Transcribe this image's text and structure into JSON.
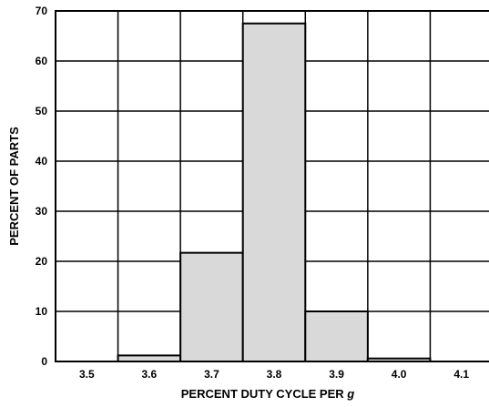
{
  "chart_data": {
    "type": "bar",
    "title": "",
    "xlabel_prefix": "PERCENT DUTY CYCLE PER ",
    "xlabel_symbol": "g",
    "ylabel": "PERCENT OF PARTS",
    "categories": [
      "3.5",
      "3.6",
      "3.7",
      "3.8",
      "3.9",
      "4.0",
      "4.1"
    ],
    "values": [
      0,
      1.2,
      21.7,
      67.5,
      10,
      0.6,
      0
    ],
    "ylim": [
      0,
      70
    ],
    "yticks": [
      0,
      10,
      20,
      30,
      40,
      50,
      60,
      70
    ],
    "grid": true,
    "bar_color": "#d9d9d9",
    "grid_color": "#000000"
  }
}
